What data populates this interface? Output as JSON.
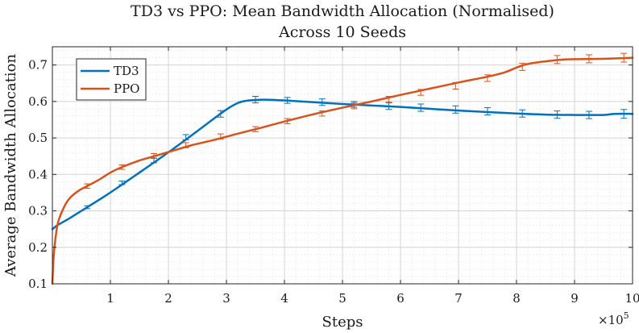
{
  "chart_data": {
    "type": "line",
    "title": "TD3 vs PPO: Mean Bandwidth Allocation (Normalised)",
    "subtitle": "Across 10 Seeds",
    "xlabel": "Steps",
    "ylabel": "Average Bandwidth Allocation",
    "x_exponent_label": "×10",
    "x_exponent_power": "5",
    "xlim": [
      0,
      10
    ],
    "ylim": [
      0.1,
      0.75
    ],
    "xticks": [
      1,
      2,
      3,
      4,
      5,
      6,
      7,
      8,
      9,
      10
    ],
    "xtick_labels": [
      "1",
      "2",
      "3",
      "4",
      "5",
      "6",
      "7",
      "8",
      "9",
      "10"
    ],
    "yticks": [
      0.1,
      0.2,
      0.3,
      0.4,
      0.5,
      0.6,
      0.7
    ],
    "ytick_labels": [
      "0.1",
      "0.2",
      "0.3",
      "0.4",
      "0.5",
      "0.6",
      "0.7"
    ],
    "grid": true,
    "legend_position": "top-left",
    "series": [
      {
        "name": "TD3",
        "color": "#0072BD",
        "x": [
          0,
          0.1,
          0.3,
          0.6,
          0.9,
          1.2,
          1.5,
          1.8,
          2.1,
          2.4,
          2.7,
          3.0,
          3.2,
          3.35,
          3.5,
          3.65,
          4.0,
          4.5,
          5.0,
          5.5,
          6.0,
          6.5,
          7.0,
          7.5,
          8.0,
          8.5,
          9.0,
          9.3,
          9.5,
          9.7,
          10.0
        ],
        "values": [
          0.25,
          0.262,
          0.28,
          0.31,
          0.34,
          0.372,
          0.405,
          0.438,
          0.472,
          0.507,
          0.543,
          0.578,
          0.596,
          0.602,
          0.604,
          0.605,
          0.603,
          0.598,
          0.593,
          0.589,
          0.585,
          0.58,
          0.575,
          0.571,
          0.567,
          0.564,
          0.563,
          0.563,
          0.563,
          0.566,
          0.566
        ],
        "error_x": [
          0.6,
          1.2,
          1.75,
          2.3,
          2.9,
          3.5,
          4.05,
          4.65,
          5.2,
          5.8,
          6.35,
          6.95,
          7.5,
          8.1,
          8.7,
          9.25,
          9.85
        ],
        "error_y": [
          0.31,
          0.377,
          0.438,
          0.502,
          0.566,
          0.605,
          0.603,
          0.598,
          0.592,
          0.587,
          0.583,
          0.578,
          0.573,
          0.567,
          0.564,
          0.563,
          0.566
        ],
        "error_half": [
          0.004,
          0.005,
          0.006,
          0.007,
          0.009,
          0.009,
          0.008,
          0.009,
          0.008,
          0.009,
          0.01,
          0.01,
          0.01,
          0.01,
          0.01,
          0.01,
          0.012
        ]
      },
      {
        "name": "PPO",
        "color": "#D95319",
        "x": [
          0,
          0.02,
          0.05,
          0.1,
          0.2,
          0.3,
          0.45,
          0.6,
          0.8,
          1.0,
          1.2,
          1.5,
          1.8,
          2.1,
          2.4,
          2.8,
          3.2,
          3.6,
          4.0,
          4.5,
          5.0,
          5.5,
          6.0,
          6.5,
          7.0,
          7.5,
          7.8,
          8.0,
          8.2,
          8.5,
          8.8,
          9.0,
          9.5,
          10.0
        ],
        "values": [
          0.1,
          0.17,
          0.22,
          0.27,
          0.31,
          0.335,
          0.355,
          0.368,
          0.385,
          0.405,
          0.42,
          0.438,
          0.452,
          0.466,
          0.48,
          0.495,
          0.512,
          0.528,
          0.545,
          0.565,
          0.583,
          0.6,
          0.618,
          0.635,
          0.652,
          0.668,
          0.68,
          0.693,
          0.703,
          0.71,
          0.715,
          0.716,
          0.717,
          0.72
        ],
        "error_x": [
          0.6,
          1.2,
          1.75,
          2.3,
          2.9,
          3.5,
          4.05,
          4.65,
          5.2,
          5.8,
          6.35,
          6.95,
          7.5,
          8.1,
          8.7,
          9.25,
          9.85
        ],
        "error_y": [
          0.368,
          0.42,
          0.451,
          0.48,
          0.504,
          0.524,
          0.546,
          0.567,
          0.588,
          0.606,
          0.625,
          0.643,
          0.664,
          0.695,
          0.715,
          0.717,
          0.72
        ],
        "error_half": [
          0.006,
          0.006,
          0.006,
          0.007,
          0.007,
          0.007,
          0.007,
          0.007,
          0.008,
          0.008,
          0.008,
          0.009,
          0.009,
          0.01,
          0.011,
          0.011,
          0.012
        ]
      }
    ]
  }
}
